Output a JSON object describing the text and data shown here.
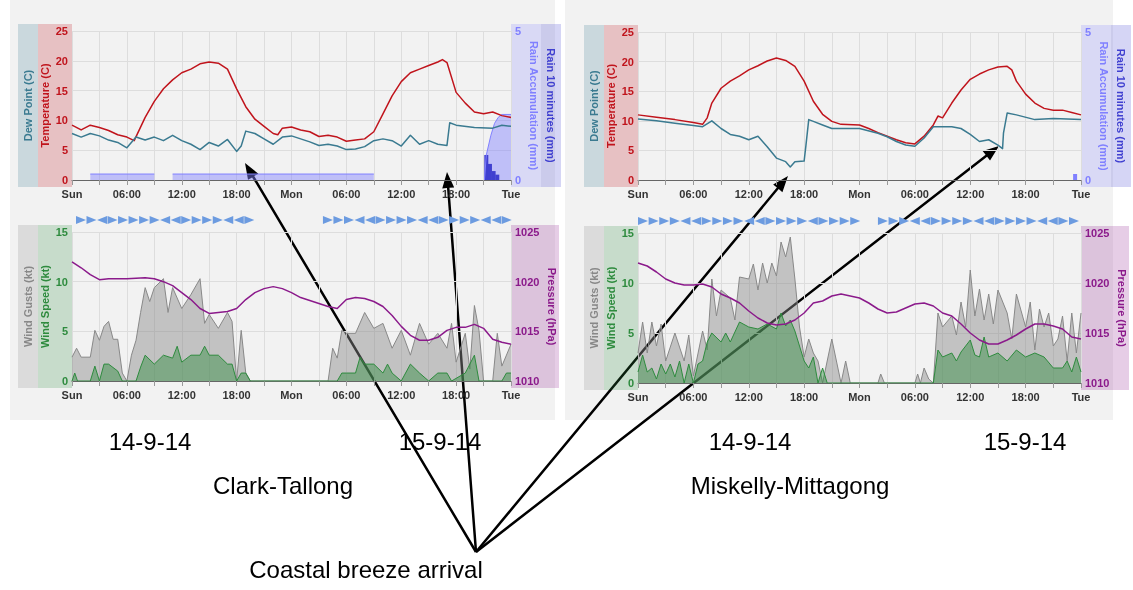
{
  "chart_data": [
    {
      "type": "line",
      "grid": true,
      "xlim": [
        "--09-14T00:00",
        "--09-16T00:00"
      ],
      "xticks": [
        {
          "value": "--09-14T00:00",
          "label": "Sun"
        },
        {
          "value": "--09-14T03:00",
          "label": null
        },
        {
          "value": "--09-14T06:00",
          "label": "06:00"
        },
        {
          "value": "--09-14T09:00",
          "label": null
        },
        {
          "value": "--09-14T12:00",
          "label": "12:00"
        },
        {
          "value": "--09-14T15:00",
          "label": null
        },
        {
          "value": "--09-14T18:00",
          "label": "18:00"
        },
        {
          "value": "--09-14T21:00",
          "label": null
        },
        {
          "value": "--09-15T00:00",
          "label": "Mon"
        },
        {
          "value": "--09-15T03:00",
          "label": null
        },
        {
          "value": "--09-15T06:00",
          "label": "06:00"
        },
        {
          "value": "--09-15T09:00",
          "label": null
        },
        {
          "value": "--09-15T12:00",
          "label": "12:00"
        },
        {
          "value": "--09-15T15:00",
          "label": null
        },
        {
          "value": "--09-15T18:00",
          "label": "18:00"
        },
        {
          "value": "--09-15T21:00",
          "label": null
        },
        {
          "value": "--09-16T00:00",
          "label": "Tue"
        }
      ],
      "ylim": [
        0,
        25
      ],
      "yticks": [
        0,
        5,
        10,
        15,
        20,
        25
      ],
      "y2lim": [
        0,
        5
      ],
      "y2ticks": [
        0,
        5
      ],
      "series": [
        {
          "name": "Temperature (C)",
          "color": "#c0141c",
          "x": [
            "--09-14T00:00",
            "--09-14T01:00",
            "--09-14T02:00",
            "--09-14T03:00",
            "--09-14T04:00",
            "--09-14T05:00",
            "--09-14T06:00",
            "--09-14T06:48",
            "--09-14T08:00",
            "--09-14T09:00",
            "--09-14T10:00",
            "--09-14T11:00",
            "--09-14T12:00",
            "--09-14T13:00",
            "--09-14T14:00",
            "--09-14T15:00",
            "--09-14T16:00",
            "--09-14T17:00",
            "--09-14T18:00",
            "--09-14T19:00",
            "--09-14T20:00",
            "--09-14T21:00",
            "--09-14T22:00",
            "--09-14T22:30",
            "--09-14T23:00",
            "--09-15T00:00",
            "--09-15T01:00",
            "--09-15T02:00",
            "--09-15T03:00",
            "--09-15T04:00",
            "--09-15T05:00",
            "--09-15T06:00",
            "--09-15T07:00",
            "--09-15T08:00",
            "--09-15T09:00",
            "--09-15T10:00",
            "--09-15T11:00",
            "--09-15T12:00",
            "--09-15T13:00",
            "--09-15T14:00",
            "--09-15T15:00",
            "--09-15T16:00",
            "--09-15T16:30",
            "--09-15T17:00",
            "--09-15T18:00",
            "--09-15T19:00",
            "--09-15T20:00",
            "--09-15T21:00",
            "--09-15T22:00",
            "--09-15T23:00",
            "--09-16T00:00"
          ],
          "values": [
            9.2,
            8.4,
            9.2,
            8.8,
            8.3,
            7.6,
            7.2,
            6.6,
            10.5,
            13.2,
            15.3,
            16.8,
            18.0,
            18.6,
            19.5,
            19.8,
            19.6,
            18.6,
            15.3,
            12.3,
            10.2,
            9.0,
            7.8,
            7.6,
            8.7,
            8.9,
            8.4,
            8.1,
            7.3,
            7.5,
            7.2,
            6.5,
            6.7,
            6.9,
            8.1,
            11.1,
            14.1,
            16.5,
            18.0,
            18.6,
            19.2,
            19.8,
            20.2,
            19.7,
            14.7,
            12.9,
            11.4,
            11.1,
            11.4,
            10.8,
            10.5
          ]
        },
        {
          "name": "Dew Point (C)",
          "color": "#3a7a90",
          "x": [
            "--09-14T00:00",
            "--09-14T01:00",
            "--09-14T02:00",
            "--09-14T03:00",
            "--09-14T04:00",
            "--09-14T05:00",
            "--09-14T06:00",
            "--09-14T07:00",
            "--09-14T08:00",
            "--09-14T09:00",
            "--09-14T10:00",
            "--09-14T11:00",
            "--09-14T12:00",
            "--09-14T13:00",
            "--09-14T14:00",
            "--09-14T15:00",
            "--09-14T16:00",
            "--09-14T17:00",
            "--09-14T18:00",
            "--09-14T18:30",
            "--09-14T19:00",
            "--09-14T20:00",
            "--09-14T21:00",
            "--09-14T22:00",
            "--09-14T23:00",
            "--09-15T00:00",
            "--09-15T01:00",
            "--09-15T02:00",
            "--09-15T03:00",
            "--09-15T04:00",
            "--09-15T05:00",
            "--09-15T06:00",
            "--09-15T07:00",
            "--09-15T08:00",
            "--09-15T09:00",
            "--09-15T10:00",
            "--09-15T11:00",
            "--09-15T12:00",
            "--09-15T13:00",
            "--09-15T14:00",
            "--09-15T15:00",
            "--09-15T16:00",
            "--09-15T17:00",
            "--09-15T17:18",
            "--09-15T18:00",
            "--09-15T20:00",
            "--09-15T22:00",
            "--09-15T23:00",
            "--09-16T00:00"
          ],
          "values": [
            7.8,
            7.2,
            7.8,
            7.4,
            6.7,
            6.3,
            5.4,
            7.2,
            6.7,
            7.2,
            6.6,
            7.5,
            6.6,
            6.0,
            5.1,
            6.3,
            5.7,
            6.8,
            4.8,
            5.7,
            8.2,
            7.8,
            6.9,
            6.0,
            7.2,
            7.4,
            6.9,
            6.4,
            5.8,
            6.0,
            5.7,
            5.1,
            5.2,
            5.6,
            6.6,
            6.9,
            6.6,
            5.7,
            7.5,
            6.0,
            6.6,
            6.0,
            5.8,
            9.6,
            9.2,
            8.8,
            8.7,
            9.2,
            9.0
          ]
        },
        {
          "name": "Rain Accumulation (mm)",
          "type": "area",
          "axis": "y2",
          "color": "#8080ff",
          "x": [
            "--09-15T21:06",
            "--09-15T21:18",
            "--09-15T21:48",
            "--09-15T22:12",
            "--09-15T22:36",
            "--09-15T23:00",
            "--09-16T00:00"
          ],
          "values": [
            0,
            0.84,
            1.5,
            1.9,
            2.1,
            2.2,
            2.2
          ]
        },
        {
          "name": "Rain 10 minutes (mm)",
          "type": "bar",
          "axis": "y2",
          "color": "#4040d0",
          "x": [
            "--09-15T21:18",
            "--09-15T21:42",
            "--09-15T22:06",
            "--09-15T22:30"
          ],
          "values": [
            0.84,
            0.54,
            0.3,
            0.18
          ]
        },
        {
          "type": "area",
          "axis": "y2",
          "color": "#8080ff",
          "x": [
            "--09-14T02:00",
            "--09-14T09:00"
          ],
          "values": [
            0.2,
            0.2
          ]
        },
        {
          "type": "area",
          "axis": "y2",
          "color": "#8080ff",
          "x": [
            "--09-14T11:00",
            "--09-15T09:00"
          ],
          "values": [
            0.2,
            0.2
          ]
        }
      ]
    },
    {
      "type": "line",
      "grid": true,
      "xlim": [
        "--09-14T00:00",
        "--09-16T00:00"
      ],
      "xticks": [
        {
          "value": "--09-14T00:00",
          "label": "Sun"
        },
        {
          "value": "--09-14T03:00",
          "label": null
        },
        {
          "value": "--09-14T06:00",
          "label": "06:00"
        },
        {
          "value": "--09-14T09:00",
          "label": null
        },
        {
          "value": "--09-14T12:00",
          "label": "12:00"
        },
        {
          "value": "--09-14T15:00",
          "label": null
        },
        {
          "value": "--09-14T18:00",
          "label": "18:00"
        },
        {
          "value": "--09-14T21:00",
          "label": null
        },
        {
          "value": "--09-15T00:00",
          "label": "Mon"
        },
        {
          "value": "--09-15T03:00",
          "label": null
        },
        {
          "value": "--09-15T06:00",
          "label": "06:00"
        },
        {
          "value": "--09-15T09:00",
          "label": null
        },
        {
          "value": "--09-15T12:00",
          "label": "12:00"
        },
        {
          "value": "--09-15T15:00",
          "label": null
        },
        {
          "value": "--09-15T18:00",
          "label": "18:00"
        },
        {
          "value": "--09-15T21:00",
          "label": null
        },
        {
          "value": "--09-16T00:00",
          "label": "Tue"
        }
      ],
      "ylim": [
        0,
        15
      ],
      "yticks": [
        0,
        5,
        10,
        15
      ],
      "y2lim": [
        1010,
        1025
      ],
      "y2ticks": [
        1010,
        1015,
        1020,
        1025
      ],
      "annotations": [
        "14-9-14",
        "15-9-14",
        "Clark-Tallong",
        "Coastal breeze arrival"
      ],
      "series": [
        {
          "name": "Wind Speed (kt)",
          "type": "area",
          "color": "#2e8b3e",
          "x": [
            "--09-14T00:00",
            "--09-14T00:18",
            "--09-14T00:36",
            "--09-14T02:00",
            "--09-14T02:30",
            "--09-14T03:00",
            "--09-14T03:30",
            "--09-14T04:00",
            "--09-14T05:00",
            "--09-14T05:30",
            "--09-14T07:00",
            "--09-14T07:30",
            "--09-14T08:00",
            "--09-14T09:00",
            "--09-14T10:00",
            "--09-14T11:00",
            "--09-14T11:30",
            "--09-14T12:00",
            "--09-14T13:00",
            "--09-14T14:00",
            "--09-14T14:30",
            "--09-14T15:00",
            "--09-14T16:00",
            "--09-14T17:00",
            "--09-14T17:30",
            "--09-14T18:00",
            "--09-14T18:30",
            "--09-14T19:00",
            "--09-14T19:30",
            "--09-15T00:00",
            "--09-15T05:00",
            "--09-15T05:30",
            "--09-15T06:00",
            "--09-15T07:00",
            "--09-15T07:30",
            "--09-15T08:00",
            "--09-15T09:00",
            "--09-15T10:00",
            "--09-15T10:30",
            "--09-15T11:00",
            "--09-15T12:00",
            "--09-15T13:00",
            "--09-15T14:00",
            "--09-15T15:00",
            "--09-15T16:00",
            "--09-15T17:00",
            "--09-15T17:30",
            "--09-15T19:00",
            "--09-15T20:00",
            "--09-15T20:30",
            "--09-15T23:00",
            "--09-15T23:30",
            "--09-16T00:00"
          ],
          "values": [
            0,
            0.8,
            0,
            0,
            1.5,
            0,
            1.7,
            1.7,
            1.0,
            0,
            0,
            1.4,
            2.6,
            1.7,
            2.6,
            2.3,
            3.5,
            1.9,
            2.6,
            2.6,
            3.5,
            2.6,
            2.6,
            1.7,
            1.7,
            0,
            0.8,
            0.8,
            0,
            0,
            0,
            0.8,
            0.8,
            0.8,
            2.4,
            1.7,
            1.7,
            0.8,
            1.7,
            0.8,
            0,
            1.7,
            0.8,
            0,
            0.8,
            0.8,
            0,
            0.8,
            2.6,
            0,
            0,
            0.8,
            0.8
          ]
        },
        {
          "name": "Wind Gusts (kt)",
          "type": "area",
          "color": "#888888",
          "x": [
            "--09-14T00:00",
            "--09-14T00:30",
            "--09-14T01:00",
            "--09-14T02:00",
            "--09-14T02:30",
            "--09-14T03:00",
            "--09-14T03:30",
            "--09-14T04:00",
            "--09-14T04:30",
            "--09-14T05:00",
            "--09-14T05:30",
            "--09-14T06:00",
            "--09-14T06:30",
            "--09-14T07:00",
            "--09-14T07:30",
            "--09-14T08:00",
            "--09-14T08:30",
            "--09-14T09:00",
            "--09-14T10:00",
            "--09-14T10:30",
            "--09-14T11:00",
            "--09-14T12:00",
            "--09-14T13:00",
            "--09-14T14:00",
            "--09-14T14:30",
            "--09-14T15:00",
            "--09-14T16:00",
            "--09-14T17:00",
            "--09-14T17:30",
            "--09-14T18:00",
            "--09-14T18:30",
            "--09-14T19:00",
            "--09-14T19:30",
            "--09-15T00:00",
            "--09-15T04:00",
            "--09-15T04:30",
            "--09-15T05:00",
            "--09-15T05:30",
            "--09-15T06:00",
            "--09-15T07:00",
            "--09-15T08:00",
            "--09-15T09:00",
            "--09-15T10:00",
            "--09-15T11:00",
            "--09-15T12:00",
            "--09-15T13:00",
            "--09-15T14:00",
            "--09-15T15:00",
            "--09-15T16:00",
            "--09-15T17:00",
            "--09-15T17:30",
            "--09-15T18:00",
            "--09-15T19:00",
            "--09-15T19:30",
            "--09-15T20:00",
            "--09-15T20:30",
            "--09-15T21:00",
            "--09-15T22:00",
            "--09-15T22:30",
            "--09-15T23:00",
            "--09-16T00:00"
          ],
          "values": [
            2.4,
            3.3,
            2.4,
            2.4,
            5.1,
            4.1,
            5.5,
            6.0,
            4.2,
            4.2,
            0.8,
            0,
            2.6,
            4.1,
            6.9,
            9.4,
            8.0,
            9.4,
            10.3,
            6.9,
            9.4,
            7.3,
            8.7,
            10.3,
            5.8,
            6.7,
            5.3,
            6.9,
            6.0,
            0,
            5.1,
            0.8,
            0,
            0,
            0,
            3.3,
            2.3,
            5.1,
            4.8,
            4.8,
            6.9,
            5.3,
            5.8,
            3.3,
            5.1,
            2.6,
            5.8,
            3.7,
            4.8,
            3.3,
            5.8,
            1.9,
            4.8,
            1.2,
            7.6,
            5.1,
            0,
            0,
            4.8,
            1.5,
            3.7
          ]
        },
        {
          "name": "Pressure (hPa)",
          "axis": "y2",
          "color": "#8b1a8b",
          "x": [
            "--09-14T00:00",
            "--09-14T01:00",
            "--09-14T02:00",
            "--09-14T03:00",
            "--09-14T04:00",
            "--09-14T06:00",
            "--09-14T08:00",
            "--09-14T09:00",
            "--09-14T10:00",
            "--09-14T11:00",
            "--09-14T12:00",
            "--09-14T13:00",
            "--09-14T14:00",
            "--09-14T15:00",
            "--09-14T16:00",
            "--09-14T17:00",
            "--09-14T18:00",
            "--09-14T19:00",
            "--09-14T20:00",
            "--09-14T21:00",
            "--09-14T22:00",
            "--09-14T23:00",
            "--09-15T00:00",
            "--09-15T01:00",
            "--09-15T02:00",
            "--09-15T03:00",
            "--09-15T04:00",
            "--09-15T05:00",
            "--09-15T06:00",
            "--09-15T07:00",
            "--09-15T08:00",
            "--09-15T09:00",
            "--09-15T10:00",
            "--09-15T11:00",
            "--09-15T12:00",
            "--09-15T13:00",
            "--09-15T14:00",
            "--09-15T15:00",
            "--09-15T16:00",
            "--09-15T17:00",
            "--09-15T18:00",
            "--09-15T19:00",
            "--09-15T20:00",
            "--09-15T21:00",
            "--09-15T22:00",
            "--09-15T23:00",
            "--09-16T00:00"
          ],
          "values": [
            1022.0,
            1021.4,
            1020.7,
            1020.2,
            1020.3,
            1020.3,
            1020.4,
            1020.3,
            1020.0,
            1019.6,
            1018.9,
            1018.2,
            1017.3,
            1016.8,
            1016.9,
            1017.0,
            1017.3,
            1018.2,
            1018.9,
            1019.3,
            1019.5,
            1019.3,
            1018.9,
            1018.4,
            1018.1,
            1017.8,
            1017.5,
            1017.3,
            1018.2,
            1018.4,
            1018.3,
            1018.0,
            1017.5,
            1016.6,
            1015.5,
            1014.6,
            1014.1,
            1014.1,
            1014.4,
            1015.1,
            1015.4,
            1015.4,
            1015.7,
            1015.3,
            1014.2,
            1013.9,
            1013.7
          ]
        }
      ]
    },
    {
      "type": "line",
      "grid": true,
      "xlim": [
        "--09-14T00:00",
        "--09-16T00:00"
      ],
      "xticks": [
        {
          "value": "--09-14T00:00",
          "label": "Sun"
        },
        {
          "value": "--09-14T03:00",
          "label": null
        },
        {
          "value": "--09-14T06:00",
          "label": "06:00"
        },
        {
          "value": "--09-14T09:00",
          "label": null
        },
        {
          "value": "--09-14T12:00",
          "label": "12:00"
        },
        {
          "value": "--09-14T15:00",
          "label": null
        },
        {
          "value": "--09-14T18:00",
          "label": "18:00"
        },
        {
          "value": "--09-14T21:00",
          "label": null
        },
        {
          "value": "--09-15T00:00",
          "label": "Mon"
        },
        {
          "value": "--09-15T03:00",
          "label": null
        },
        {
          "value": "--09-15T06:00",
          "label": "06:00"
        },
        {
          "value": "--09-15T09:00",
          "label": null
        },
        {
          "value": "--09-15T12:00",
          "label": "12:00"
        },
        {
          "value": "--09-15T15:00",
          "label": null
        },
        {
          "value": "--09-15T18:00",
          "label": "18:00"
        },
        {
          "value": "--09-15T21:00",
          "label": null
        },
        {
          "value": "--09-16T00:00",
          "label": "Tue"
        }
      ],
      "ylim": [
        0,
        25
      ],
      "yticks": [
        0,
        5,
        10,
        15,
        20,
        25
      ],
      "y2lim": [
        0,
        5
      ],
      "y2ticks": [
        0,
        5
      ],
      "series": [
        {
          "name": "Temperature (C)",
          "color": "#c0141c",
          "x": [
            "--09-14T00:00",
            "--09-14T02:00",
            "--09-14T04:00",
            "--09-14T06:00",
            "--09-14T07:00",
            "--09-14T07:30",
            "--09-14T08:00",
            "--09-14T09:00",
            "--09-14T10:00",
            "--09-14T11:00",
            "--09-14T12:00",
            "--09-14T13:00",
            "--09-14T14:00",
            "--09-14T15:00",
            "--09-14T16:00",
            "--09-14T17:00",
            "--09-14T18:00",
            "--09-14T19:00",
            "--09-14T20:00",
            "--09-14T21:00",
            "--09-14T22:00",
            "--09-15T00:00",
            "--09-15T01:00",
            "--09-15T02:00",
            "--09-15T03:00",
            "--09-15T04:00",
            "--09-15T05:00",
            "--09-15T06:00",
            "--09-15T07:00",
            "--09-15T08:00",
            "--09-15T08:30",
            "--09-15T09:00",
            "--09-15T10:00",
            "--09-15T11:00",
            "--09-15T12:00",
            "--09-15T13:00",
            "--09-15T14:00",
            "--09-15T15:00",
            "--09-15T16:00",
            "--09-15T16:30",
            "--09-15T17:00",
            "--09-15T18:00",
            "--09-15T19:00",
            "--09-15T20:00",
            "--09-15T21:00",
            "--09-15T22:00",
            "--09-15T23:00",
            "--09-16T00:00"
          ],
          "values": [
            11.0,
            10.6,
            10.2,
            9.7,
            9.4,
            10.5,
            13.0,
            15.5,
            16.7,
            17.6,
            18.6,
            19.3,
            20.1,
            20.6,
            20.2,
            19.2,
            16.7,
            13.3,
            11.1,
            9.9,
            9.4,
            9.3,
            8.7,
            8.0,
            7.4,
            6.8,
            6.3,
            6.1,
            7.4,
            9.3,
            10.8,
            10.5,
            13.0,
            15.2,
            17.0,
            17.9,
            18.6,
            19.1,
            19.2,
            18.6,
            16.7,
            14.5,
            13.0,
            12.1,
            11.8,
            11.8,
            11.4,
            11.0
          ]
        },
        {
          "name": "Dew Point (C)",
          "color": "#3a7a90",
          "x": [
            "--09-14T00:00",
            "--09-14T02:00",
            "--09-14T04:00",
            "--09-14T06:00",
            "--09-14T07:00",
            "--09-14T08:00",
            "--09-14T09:00",
            "--09-14T10:00",
            "--09-14T11:00",
            "--09-14T12:00",
            "--09-14T13:00",
            "--09-14T14:00",
            "--09-14T15:00",
            "--09-14T16:00",
            "--09-14T16:30",
            "--09-14T17:00",
            "--09-14T18:00",
            "--09-14T18:12",
            "--09-14T18:30",
            "--09-14T19:00",
            "--09-14T20:00",
            "--09-14T21:00",
            "--09-14T22:00",
            "--09-15T00:00",
            "--09-15T02:00",
            "--09-15T03:00",
            "--09-15T04:00",
            "--09-15T05:00",
            "--09-15T06:00",
            "--09-15T07:00",
            "--09-15T08:00",
            "--09-15T10:00",
            "--09-15T11:00",
            "--09-15T12:00",
            "--09-15T13:00",
            "--09-15T14:00",
            "--09-15T15:00",
            "--09-15T15:30",
            "--09-15T15:36",
            "--09-15T16:00",
            "--09-15T17:00",
            "--09-15T19:00",
            "--09-15T21:00",
            "--09-16T00:00"
          ],
          "values": [
            10.3,
            10.0,
            9.6,
            9.2,
            9.0,
            10.0,
            8.7,
            7.7,
            7.4,
            6.8,
            7.4,
            5.6,
            3.7,
            3.1,
            2.2,
            3.1,
            3.2,
            5.9,
            10.2,
            9.9,
            9.3,
            8.7,
            8.7,
            8.7,
            7.9,
            7.3,
            6.5,
            5.9,
            5.7,
            7.1,
            9.0,
            9.0,
            8.7,
            7.7,
            6.5,
            6.8,
            5.9,
            5.3,
            7.9,
            11.3,
            11.0,
            10.2,
            10.4,
            10.2
          ]
        },
        {
          "name": "Rain Accumulation (mm)",
          "type": "bar",
          "axis": "y2",
          "color": "#8080ff",
          "x": [
            "--09-15T23:36"
          ],
          "values": [
            0.2
          ]
        },
        {
          "name": "Rain 10 minutes (mm)",
          "type": "bar",
          "axis": "y2",
          "color": "#4040d0"
        }
      ]
    },
    {
      "type": "line",
      "grid": true,
      "xlim": [
        "--09-14T00:00",
        "--09-16T00:00"
      ],
      "xticks": [
        {
          "value": "--09-14T00:00",
          "label": "Sun"
        },
        {
          "value": "--09-14T03:00",
          "label": null
        },
        {
          "value": "--09-14T06:00",
          "label": "06:00"
        },
        {
          "value": "--09-14T09:00",
          "label": null
        },
        {
          "value": "--09-14T12:00",
          "label": "12:00"
        },
        {
          "value": "--09-14T15:00",
          "label": null
        },
        {
          "value": "--09-14T18:00",
          "label": "18:00"
        },
        {
          "value": "--09-14T21:00",
          "label": null
        },
        {
          "value": "--09-15T00:00",
          "label": "Mon"
        },
        {
          "value": "--09-15T03:00",
          "label": null
        },
        {
          "value": "--09-15T06:00",
          "label": "06:00"
        },
        {
          "value": "--09-15T09:00",
          "label": null
        },
        {
          "value": "--09-15T12:00",
          "label": "12:00"
        },
        {
          "value": "--09-15T15:00",
          "label": null
        },
        {
          "value": "--09-15T18:00",
          "label": "18:00"
        },
        {
          "value": "--09-15T21:00",
          "label": null
        },
        {
          "value": "--09-16T00:00",
          "label": "Tue"
        }
      ],
      "ylim": [
        0,
        15
      ],
      "yticks": [
        0,
        5,
        10,
        15
      ],
      "y2lim": [
        1010,
        1025
      ],
      "y2ticks": [
        1010,
        1015,
        1020,
        1025
      ],
      "annotations": [
        "14-9-14",
        "15-9-14",
        "Miskelly-Mittagong"
      ],
      "series": [
        {
          "name": "Wind Speed (kt)",
          "type": "area",
          "color": "#2e8b3e",
          "x": [
            "--09-14T00:00",
            "--09-14T00:30",
            "--09-14T01:00",
            "--09-14T01:30",
            "--09-14T02:00",
            "--09-14T02:30",
            "--09-14T03:00",
            "--09-14T03:30",
            "--09-14T04:00",
            "--09-14T04:30",
            "--09-14T05:00",
            "--09-14T05:30",
            "--09-14T06:00",
            "--09-14T06:30",
            "--09-14T07:00",
            "--09-14T07:30",
            "--09-14T08:00",
            "--09-14T09:00",
            "--09-14T09:30",
            "--09-14T10:00",
            "--09-14T11:00",
            "--09-14T12:00",
            "--09-14T13:00",
            "--09-14T14:00",
            "--09-14T15:00",
            "--09-14T15:30",
            "--09-14T16:00",
            "--09-14T16:30",
            "--09-14T17:00",
            "--09-14T18:00",
            "--09-14T18:30",
            "--09-14T19:00",
            "--09-14T19:30",
            "--09-14T20:00",
            "--09-14T20:30",
            "--09-14T22:00",
            "--09-15T08:00",
            "--09-15T08:30",
            "--09-15T09:00",
            "--09-15T10:00",
            "--09-15T10:30",
            "--09-15T11:00",
            "--09-15T12:00",
            "--09-15T12:30",
            "--09-15T13:00",
            "--09-15T13:30",
            "--09-15T14:00",
            "--09-15T15:00",
            "--09-15T16:00",
            "--09-15T17:00",
            "--09-15T18:00",
            "--09-15T19:00",
            "--09-15T20:00",
            "--09-15T21:00",
            "--09-15T22:00",
            "--09-15T22:30",
            "--09-15T23:00",
            "--09-15T23:30",
            "--09-16T00:00"
          ],
          "values": [
            1.1,
            2.8,
            1.1,
            1.5,
            0.4,
            1.9,
            0.9,
            1.9,
            0.6,
            2.2,
            0,
            1.9,
            0,
            1.9,
            2.2,
            4.1,
            5.0,
            4.1,
            5.0,
            4.1,
            6.1,
            5.6,
            5.4,
            5.9,
            5.4,
            7.0,
            5.7,
            6.3,
            5.2,
            2.2,
            1.5,
            2.6,
            0,
            1.5,
            0,
            0,
            0,
            3.3,
            2.6,
            3.0,
            2.2,
            3.1,
            4.3,
            2.8,
            2.6,
            4.6,
            2.6,
            3.0,
            2.2,
            3.3,
            2.6,
            3.0,
            2.6,
            1.5,
            1.5,
            2.2,
            1.1,
            2.6,
            1.1
          ]
        },
        {
          "name": "Wind Gusts (kt)",
          "type": "area",
          "color": "#888888",
          "x": [
            "--09-14T00:00",
            "--09-14T00:30",
            "--09-14T01:00",
            "--09-14T01:30",
            "--09-14T02:00",
            "--09-14T02:30",
            "--09-14T03:00",
            "--09-14T04:00",
            "--09-14T05:00",
            "--09-14T05:30",
            "--09-14T06:00",
            "--09-14T07:00",
            "--09-14T07:30",
            "--09-14T08:00",
            "--09-14T08:30",
            "--09-14T09:00",
            "--09-14T10:00",
            "--09-14T10:30",
            "--09-14T11:00",
            "--09-14T12:00",
            "--09-14T12:30",
            "--09-14T13:00",
            "--09-14T13:30",
            "--09-14T14:00",
            "--09-14T14:30",
            "--09-14T15:00",
            "--09-14T15:30",
            "--09-14T16:00",
            "--09-14T16:30",
            "--09-14T17:00",
            "--09-14T17:30",
            "--09-14T18:00",
            "--09-14T18:30",
            "--09-14T19:00",
            "--09-14T19:30",
            "--09-14T20:00",
            "--09-14T20:30",
            "--09-14T21:00",
            "--09-14T21:30",
            "--09-14T22:00",
            "--09-14T22:30",
            "--09-14T23:00",
            "--09-15T00:00",
            "--09-15T02:00",
            "--09-15T02:18",
            "--09-15T02:42",
            "--09-15T06:00",
            "--09-15T06:18",
            "--09-15T06:36",
            "--09-15T07:00",
            "--09-15T07:30",
            "--09-15T08:00",
            "--09-15T08:30",
            "--09-15T09:00",
            "--09-15T10:00",
            "--09-15T10:30",
            "--09-15T11:00",
            "--09-15T11:30",
            "--09-15T12:00",
            "--09-15T12:30",
            "--09-15T13:00",
            "--09-15T13:30",
            "--09-15T14:00",
            "--09-15T14:30",
            "--09-15T15:00",
            "--09-15T16:00",
            "--09-15T16:30",
            "--09-15T17:00",
            "--09-15T18:00",
            "--09-15T18:30",
            "--09-15T19:00",
            "--09-15T19:30",
            "--09-15T20:00",
            "--09-15T20:30",
            "--09-15T21:00",
            "--09-15T21:30",
            "--09-15T22:00",
            "--09-15T22:30",
            "--09-15T23:00",
            "--09-15T23:30",
            "--09-16T00:00"
          ],
          "values": [
            3.0,
            6.1,
            3.0,
            6.1,
            3.7,
            5.9,
            2.2,
            5.0,
            2.2,
            4.8,
            0.7,
            5.2,
            3.3,
            10.4,
            6.7,
            9.3,
            8.5,
            6.3,
            10.6,
            10.4,
            11.9,
            9.3,
            12.0,
            10.0,
            12.0,
            10.7,
            14.1,
            12.6,
            14.6,
            10.4,
            5.6,
            2.6,
            4.4,
            3.0,
            2.2,
            0,
            2.2,
            4.4,
            2.2,
            0,
            2.2,
            0,
            0,
            0,
            0.9,
            0,
            0,
            0.9,
            0,
            1.5,
            0.4,
            0,
            7.0,
            5.6,
            6.7,
            4.8,
            8.1,
            5.6,
            11.3,
            6.7,
            9.4,
            6.3,
            8.9,
            5.9,
            9.3,
            7.0,
            4.4,
            8.9,
            5.6,
            8.1,
            3.3,
            7.4,
            5.6,
            7.0,
            3.7,
            4.4,
            6.7,
            2.2,
            7.0,
            3.0,
            7.0
          ]
        },
        {
          "name": "Pressure (hPa)",
          "axis": "y2",
          "color": "#8b1a8b",
          "x": [
            "--09-14T00:00",
            "--09-14T01:00",
            "--09-14T02:00",
            "--09-14T03:00",
            "--09-14T04:00",
            "--09-14T05:00",
            "--09-14T06:00",
            "--09-14T07:00",
            "--09-14T08:00",
            "--09-14T09:00",
            "--09-14T10:00",
            "--09-14T11:00",
            "--09-14T12:00",
            "--09-14T13:00",
            "--09-14T14:00",
            "--09-14T15:00",
            "--09-14T16:00",
            "--09-14T17:00",
            "--09-14T18:00",
            "--09-14T19:00",
            "--09-14T20:00",
            "--09-14T21:00",
            "--09-14T22:00",
            "--09-14T23:00",
            "--09-15T00:00",
            "--09-15T01:00",
            "--09-15T02:00",
            "--09-15T03:00",
            "--09-15T04:00",
            "--09-15T05:00",
            "--09-15T06:00",
            "--09-15T07:00",
            "--09-15T08:00",
            "--09-15T09:00",
            "--09-15T10:00",
            "--09-15T11:00",
            "--09-15T12:00",
            "--09-15T13:00",
            "--09-15T14:00",
            "--09-15T15:00",
            "--09-15T16:00",
            "--09-15T17:00",
            "--09-15T18:00",
            "--09-15T19:00",
            "--09-15T20:00",
            "--09-15T21:00",
            "--09-15T22:00",
            "--09-15T23:00",
            "--09-16T00:00"
          ],
          "values": [
            1022.0,
            1021.7,
            1021.1,
            1020.4,
            1020.0,
            1019.8,
            1019.8,
            1019.9,
            1019.6,
            1018.9,
            1018.5,
            1018.0,
            1017.2,
            1016.5,
            1016.0,
            1015.8,
            1015.9,
            1016.3,
            1017.0,
            1018.0,
            1018.2,
            1018.7,
            1018.9,
            1018.7,
            1018.5,
            1018.0,
            1017.4,
            1017.0,
            1017.1,
            1017.5,
            1017.9,
            1018.0,
            1017.7,
            1017.0,
            1016.7,
            1015.9,
            1015.0,
            1014.3,
            1013.9,
            1013.9,
            1014.3,
            1014.8,
            1015.4,
            1015.9,
            1015.9,
            1015.7,
            1015.4,
            1014.6,
            1014.4
          ]
        }
      ]
    }
  ]
}
